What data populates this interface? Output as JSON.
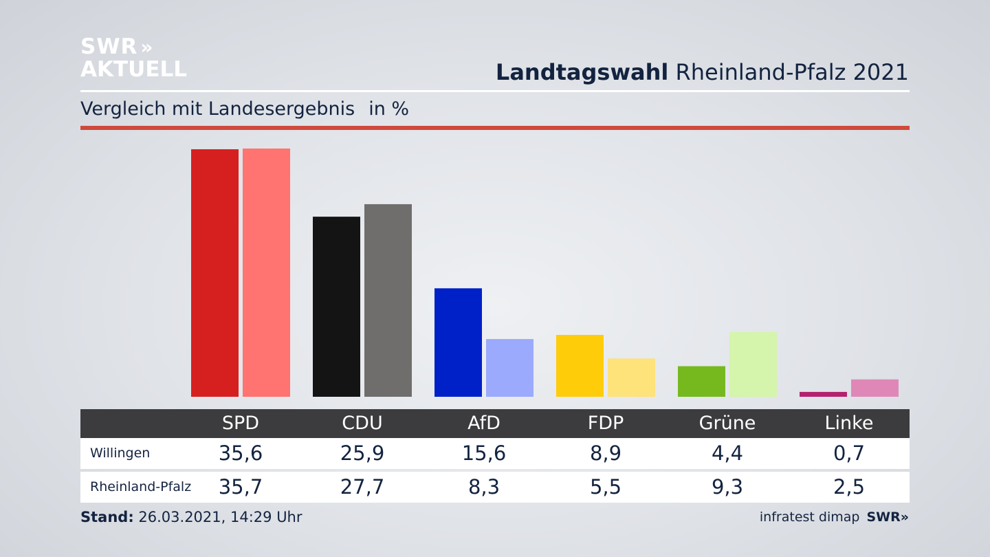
{
  "logo": {
    "line1": "SWR",
    "arrows": "»",
    "line2": "AKTUELL"
  },
  "header": {
    "title_bold": "Landtagswahl",
    "title_rest": "Rheinland-Pfalz 2021"
  },
  "subtitle": {
    "text": "Vergleich mit Landesergebnis",
    "unit": "in %"
  },
  "chart_data": {
    "type": "bar",
    "categories": [
      "SPD",
      "CDU",
      "AfD",
      "FDP",
      "Grüne",
      "Linke"
    ],
    "series": [
      {
        "name": "Willingen",
        "values": [
          35.6,
          25.9,
          15.6,
          8.9,
          4.4,
          0.7
        ]
      },
      {
        "name": "Rheinland-Pfalz",
        "values": [
          35.7,
          27.7,
          8.3,
          5.5,
          9.3,
          2.5
        ]
      }
    ],
    "ylim": [
      0,
      36
    ],
    "grid": false,
    "colors": {
      "Willingen": [
        "#d62020",
        "#141414",
        "#0021c8",
        "#ffcc0a",
        "#76b91e",
        "#b4216f"
      ],
      "Rheinland-Pfalz": [
        "#ff7370",
        "#6f6e6c",
        "#9baafc",
        "#fee27a",
        "#d4f5ab",
        "#df88b8"
      ]
    }
  },
  "table": {
    "row_labels": [
      "Willingen",
      "Rheinland-Pfalz"
    ],
    "rows": [
      [
        "35,6",
        "25,9",
        "15,6",
        "8,9",
        "4,4",
        "0,7"
      ],
      [
        "35,7",
        "27,7",
        "8,3",
        "5,5",
        "9,3",
        "2,5"
      ]
    ]
  },
  "footer": {
    "stand_label": "Stand:",
    "stand_value": "26.03.2021, 14:29 Uhr",
    "source": "infratest dimap",
    "brand": "SWR»"
  }
}
